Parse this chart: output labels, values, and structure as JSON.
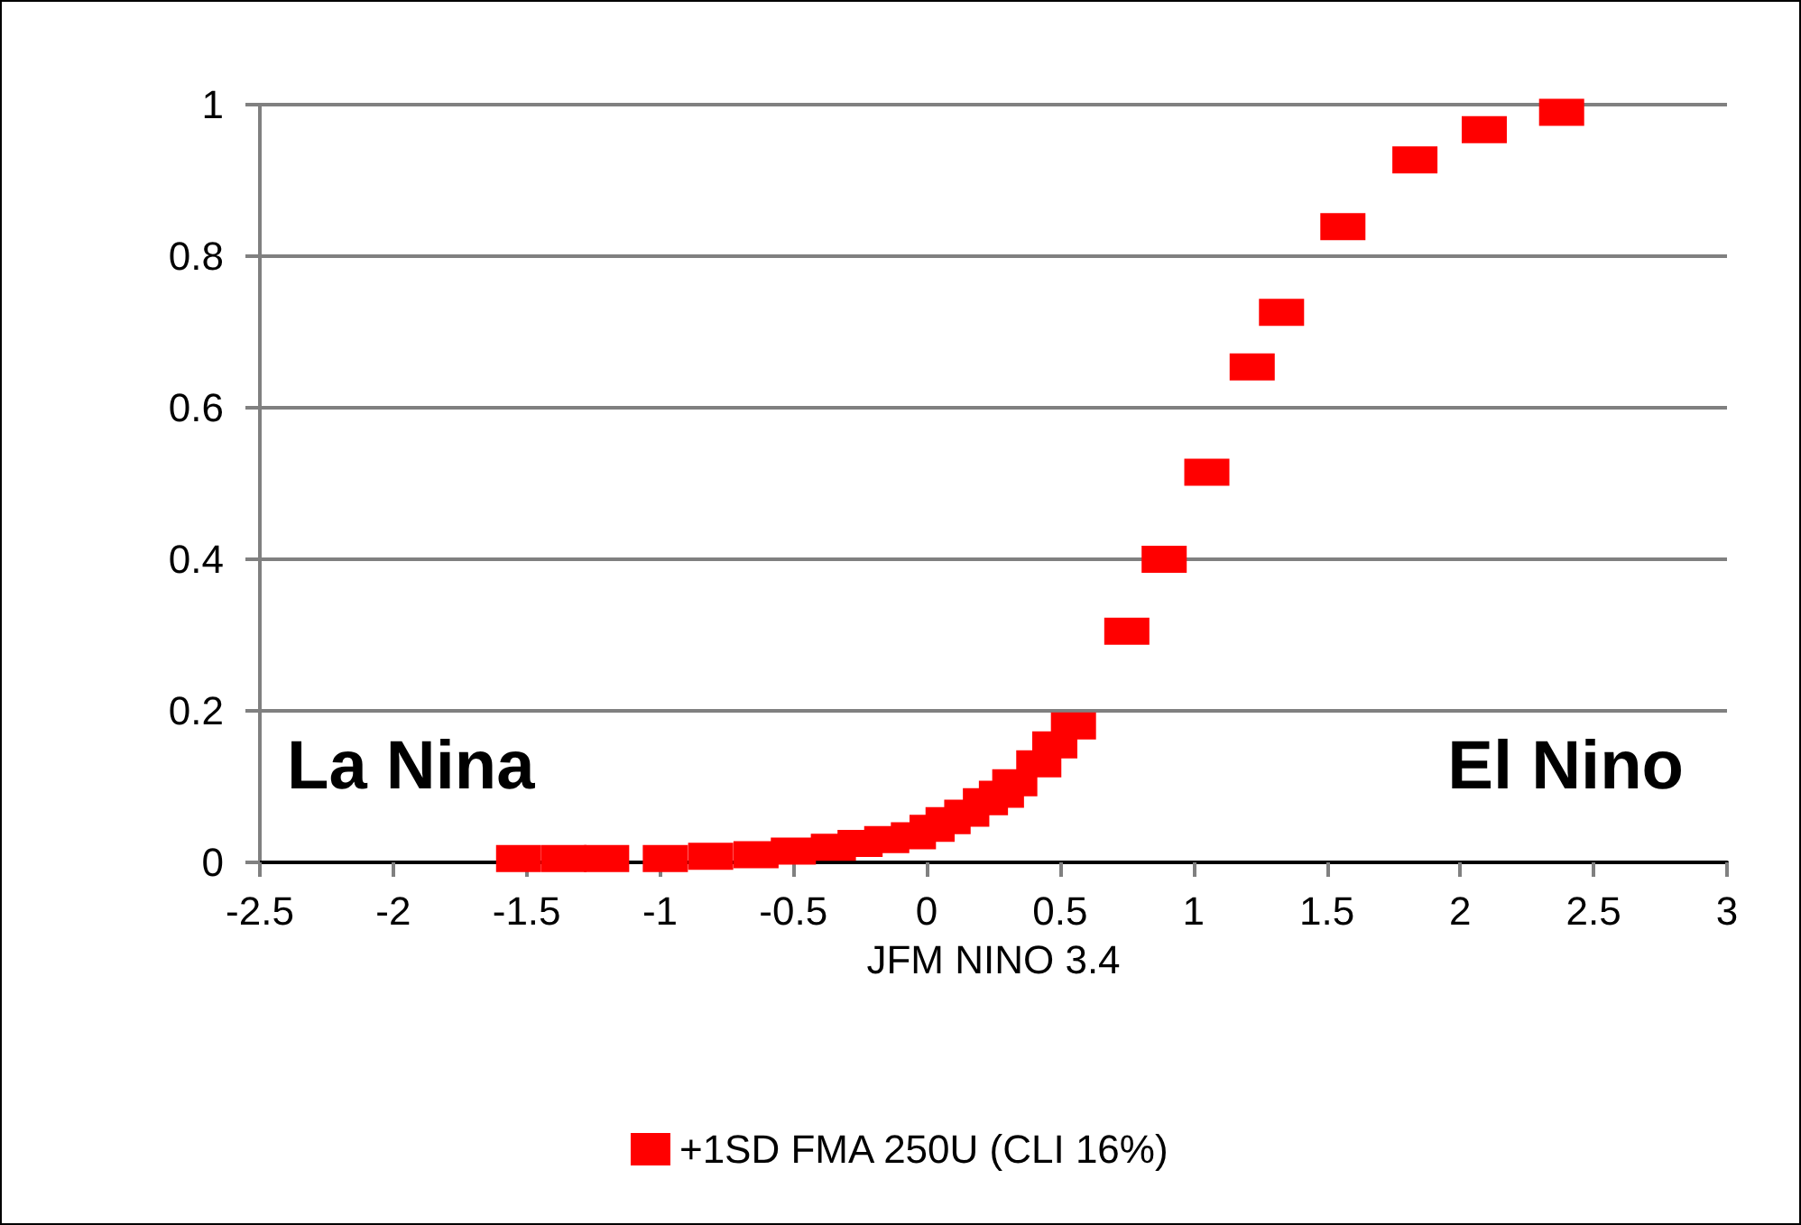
{
  "chart_data": {
    "type": "scatter",
    "xlabel": "JFM NINO 3.4",
    "annotations": [
      "La Nina",
      "El Nino"
    ],
    "x": [
      -1.53,
      -1.36,
      -1.2,
      -0.98,
      -0.81,
      -0.64,
      -0.5,
      -0.35,
      -0.25,
      -0.15,
      -0.05,
      0.02,
      0.08,
      0.15,
      0.22,
      0.28,
      0.33,
      0.42,
      0.48,
      0.55,
      0.75,
      0.89,
      1.05,
      1.22,
      1.33,
      1.56,
      1.83,
      2.09,
      2.38
    ],
    "series": [
      {
        "name": "+1SD FMA 250U (CLI 16%)",
        "color": "#ff0000",
        "values": [
          0.005,
          0.005,
          0.005,
          0.005,
          0.008,
          0.01,
          0.015,
          0.02,
          0.025,
          0.03,
          0.035,
          0.045,
          0.055,
          0.065,
          0.08,
          0.09,
          0.105,
          0.13,
          0.155,
          0.18,
          0.305,
          0.4,
          0.515,
          0.654,
          0.726,
          0.839,
          0.927,
          0.967,
          0.99
        ]
      }
    ],
    "xlim": [
      -2.5,
      3
    ],
    "xticks": [
      -2.5,
      -2,
      -1.5,
      -1,
      -0.5,
      0,
      0.5,
      1,
      1.5,
      2,
      2.5,
      3
    ],
    "ylim": [
      0,
      1
    ],
    "yticks": [
      0,
      0.2,
      0.4,
      0.6,
      0.8,
      1
    ],
    "grid": "y",
    "legend": "bottom",
    "marker": "square"
  }
}
